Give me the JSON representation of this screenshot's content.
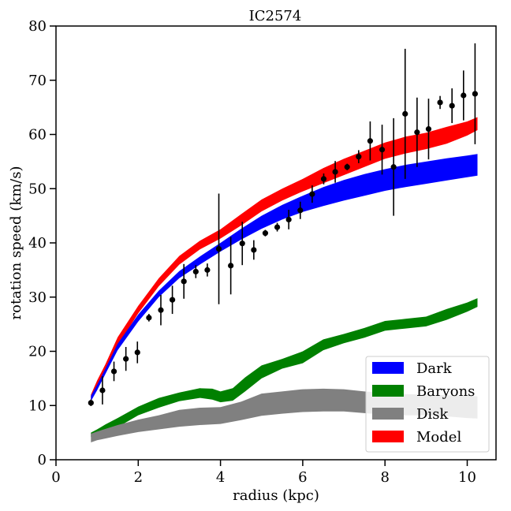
{
  "chart_data": {
    "type": "area",
    "title": "IC2574",
    "xlabel": "radius (kpc)",
    "ylabel": "rotation speed (km/s)",
    "xlim": [
      0,
      10.7
    ],
    "ylim": [
      0,
      80
    ],
    "xticks": [
      0,
      2,
      4,
      6,
      8,
      10
    ],
    "yticks": [
      0,
      10,
      20,
      30,
      40,
      50,
      60,
      70,
      80
    ],
    "grid": false,
    "legend_position": "lower-right",
    "legend": [
      "Dark",
      "Baryons",
      "Disk",
      "Model"
    ],
    "colors": {
      "Dark": "#0000ff",
      "Baryons": "#008000",
      "Disk": "#808080",
      "Model": "#ff0000",
      "points": "#000000"
    },
    "bands": [
      {
        "name": "Model",
        "x": [
          0.85,
          1.0,
          1.2,
          1.5,
          2.0,
          2.5,
          3.0,
          3.5,
          4.0,
          4.5,
          5.0,
          5.5,
          6.0,
          6.5,
          7.0,
          7.5,
          8.0,
          8.5,
          9.0,
          9.5,
          10.0,
          10.25
        ],
        "lower": [
          10.8,
          13.0,
          16.2,
          21.0,
          27.0,
          32.0,
          36.0,
          38.8,
          40.8,
          43.2,
          45.8,
          47.8,
          49.5,
          51.0,
          52.5,
          54.0,
          55.5,
          56.5,
          57.3,
          58.3,
          59.8,
          60.8
        ],
        "upper": [
          12.0,
          14.6,
          17.6,
          22.6,
          28.4,
          33.5,
          37.6,
          40.4,
          42.5,
          45.3,
          48.0,
          50.0,
          51.8,
          53.8,
          55.5,
          57.0,
          58.5,
          59.6,
          60.3,
          61.4,
          62.4,
          63.2
        ]
      },
      {
        "name": "Dark",
        "x": [
          0.85,
          1.0,
          1.2,
          1.5,
          2.0,
          2.5,
          3.0,
          3.5,
          4.0,
          4.5,
          5.0,
          5.5,
          6.0,
          6.5,
          7.0,
          7.5,
          8.0,
          8.5,
          9.0,
          9.5,
          10.0,
          10.25
        ],
        "lower": [
          10.8,
          12.8,
          15.8,
          20.2,
          25.5,
          30.0,
          33.5,
          36.0,
          38.4,
          40.6,
          42.6,
          44.3,
          45.7,
          46.8,
          47.8,
          48.7,
          49.6,
          50.3,
          50.9,
          51.5,
          52.1,
          52.4
        ],
        "upper": [
          11.8,
          13.8,
          16.8,
          21.4,
          26.8,
          31.2,
          34.8,
          37.5,
          40.0,
          42.6,
          45.0,
          47.0,
          48.7,
          50.3,
          51.6,
          52.7,
          53.6,
          54.4,
          55.0,
          55.6,
          56.1,
          56.4
        ]
      },
      {
        "name": "Baryons",
        "x": [
          0.85,
          1.0,
          1.2,
          1.5,
          2.0,
          2.5,
          3.0,
          3.5,
          3.8,
          4.0,
          4.3,
          4.6,
          5.0,
          5.5,
          6.0,
          6.5,
          7.0,
          7.5,
          8.0,
          8.5,
          9.0,
          9.5,
          10.0,
          10.25
        ],
        "lower": [
          4.2,
          4.6,
          5.2,
          6.0,
          8.2,
          9.6,
          10.8,
          11.4,
          11.1,
          10.6,
          10.9,
          12.6,
          15.0,
          16.8,
          17.8,
          20.2,
          21.5,
          22.5,
          23.8,
          24.2,
          24.6,
          25.8,
          27.3,
          28.2
        ],
        "upper": [
          5.0,
          5.6,
          6.5,
          7.7,
          9.8,
          11.4,
          12.4,
          13.2,
          13.1,
          12.6,
          13.2,
          15.2,
          17.4,
          18.6,
          20.0,
          22.2,
          23.2,
          24.3,
          25.6,
          26.0,
          26.4,
          27.8,
          29.0,
          29.8
        ]
      },
      {
        "name": "Disk",
        "x": [
          0.85,
          1.0,
          1.5,
          2.0,
          2.5,
          3.0,
          3.5,
          4.0,
          4.5,
          5.0,
          5.5,
          6.0,
          6.5,
          7.0,
          7.5,
          8.0,
          8.5,
          9.0,
          9.5,
          10.0,
          10.25
        ],
        "lower": [
          3.2,
          3.6,
          4.4,
          5.1,
          5.6,
          6.1,
          6.4,
          6.6,
          7.3,
          8.1,
          8.5,
          8.8,
          8.9,
          8.9,
          8.6,
          8.3,
          8.2,
          8.2,
          8.0,
          7.7,
          7.6
        ],
        "upper": [
          4.8,
          5.2,
          6.4,
          7.4,
          8.2,
          9.2,
          9.6,
          9.7,
          10.7,
          12.2,
          12.6,
          13.0,
          13.1,
          13.0,
          12.6,
          12.3,
          12.1,
          12.0,
          11.9,
          11.8,
          11.7
        ]
      }
    ],
    "observed": {
      "name": "data",
      "x": [
        0.85,
        1.13,
        1.41,
        1.7,
        1.98,
        2.26,
        2.55,
        2.83,
        3.11,
        3.4,
        3.68,
        3.96,
        4.25,
        4.53,
        4.81,
        5.09,
        5.38,
        5.66,
        5.94,
        6.23,
        6.51,
        6.79,
        7.08,
        7.36,
        7.64,
        7.93,
        8.21,
        8.49,
        8.78,
        9.06,
        9.34,
        9.63,
        9.91,
        10.19
      ],
      "y": [
        10.5,
        12.8,
        16.3,
        18.6,
        19.8,
        26.2,
        27.6,
        29.5,
        32.9,
        34.7,
        35.0,
        38.9,
        35.8,
        39.9,
        38.7,
        41.8,
        42.9,
        44.3,
        46.0,
        49.0,
        51.8,
        53.1,
        54.0,
        55.9,
        58.8,
        57.2,
        54.0,
        63.8,
        60.4,
        61.0,
        65.9,
        65.3,
        67.2,
        67.5
      ],
      "err": [
        0.6,
        2.6,
        1.8,
        2.2,
        2.0,
        0.7,
        2.8,
        2.6,
        3.2,
        1.2,
        1.2,
        10.2,
        5.3,
        4.0,
        1.8,
        0.6,
        0.8,
        1.8,
        1.6,
        1.6,
        1.0,
        2.0,
        0.6,
        1.2,
        3.6,
        4.6,
        9.0,
        12.0,
        6.4,
        5.6,
        1.2,
        3.2,
        4.6,
        9.3
      ]
    }
  }
}
